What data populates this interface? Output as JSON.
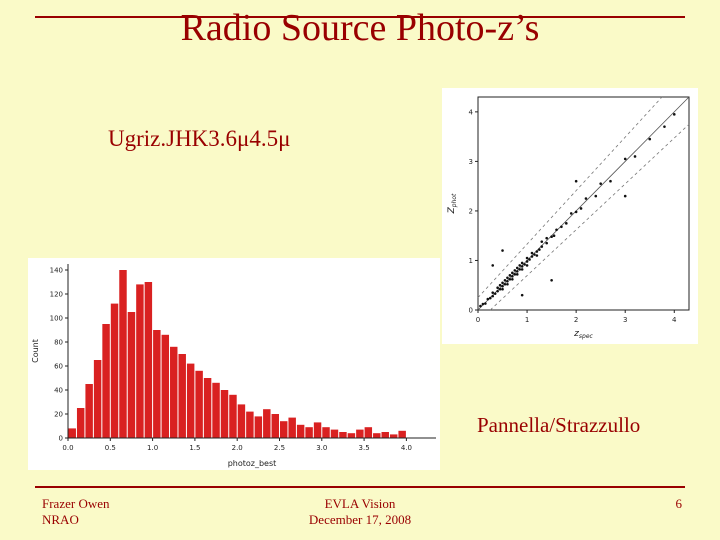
{
  "slide": {
    "title": "Radio Source Photo-z’s",
    "filter_label": "Ugriz.JHK3.6μ4.5μ",
    "credit": "Pannella/Strazzullo",
    "footer": {
      "left_line1": "Frazer Owen",
      "left_line2": "NRAO",
      "center_line1": "EVLA Vision",
      "center_line2": "December 17, 2008",
      "page_number": "6"
    },
    "colors": {
      "background": "#FAFAC8",
      "accent": "#990000",
      "bar": "#D92121",
      "axis": "#222222",
      "point": "#111111"
    }
  },
  "chart_data": [
    {
      "type": "bar",
      "title": "",
      "xlabel": "photoz_best",
      "ylabel": "Count",
      "xlim": [
        0,
        4.35
      ],
      "ylim": [
        0,
        145
      ],
      "bin_start": 0.0,
      "bin_width": 0.1,
      "x_ticks": [
        0.0,
        0.5,
        1.0,
        1.5,
        2.0,
        2.5,
        3.0,
        3.5,
        4.0
      ],
      "y_ticks": [
        0,
        20,
        40,
        60,
        80,
        100,
        120,
        140
      ],
      "values": [
        8,
        25,
        45,
        65,
        95,
        112,
        140,
        105,
        128,
        130,
        90,
        86,
        76,
        70,
        62,
        56,
        50,
        46,
        40,
        36,
        28,
        22,
        18,
        24,
        20,
        14,
        17,
        11,
        9,
        13,
        9,
        7,
        5,
        4,
        7,
        9,
        4,
        5,
        3,
        6
      ]
    },
    {
      "type": "scatter",
      "title": "",
      "xlabel_main": "z",
      "xlabel_sub": "spec",
      "ylabel_main": "Z",
      "ylabel_sub": "phot",
      "xlim": [
        0,
        4.3
      ],
      "ylim": [
        0,
        4.3
      ],
      "x_ticks": [
        0,
        1,
        2,
        3,
        4
      ],
      "y_ticks": [
        0,
        1,
        2,
        3,
        4
      ],
      "diagonal": [
        [
          0,
          0
        ],
        [
          4.3,
          4.3
        ]
      ],
      "dashed_lines": [
        [
          [
            0,
            0.25
          ],
          [
            3.75,
            4.3
          ]
        ],
        [
          [
            0.25,
            0
          ],
          [
            4.3,
            3.75
          ]
        ]
      ],
      "points": [
        [
          0.05,
          0.08
        ],
        [
          0.1,
          0.12
        ],
        [
          0.15,
          0.13
        ],
        [
          0.2,
          0.22
        ],
        [
          0.25,
          0.24
        ],
        [
          0.3,
          0.28
        ],
        [
          0.3,
          0.35
        ],
        [
          0.35,
          0.33
        ],
        [
          0.4,
          0.38
        ],
        [
          0.4,
          0.45
        ],
        [
          0.45,
          0.42
        ],
        [
          0.45,
          0.5
        ],
        [
          0.5,
          0.48
        ],
        [
          0.5,
          0.55
        ],
        [
          0.5,
          0.42
        ],
        [
          0.55,
          0.52
        ],
        [
          0.55,
          0.6
        ],
        [
          0.6,
          0.58
        ],
        [
          0.6,
          0.52
        ],
        [
          0.6,
          0.65
        ],
        [
          0.65,
          0.62
        ],
        [
          0.65,
          0.7
        ],
        [
          0.7,
          0.68
        ],
        [
          0.7,
          0.62
        ],
        [
          0.7,
          0.75
        ],
        [
          0.75,
          0.72
        ],
        [
          0.75,
          0.8
        ],
        [
          0.8,
          0.78
        ],
        [
          0.8,
          0.72
        ],
        [
          0.8,
          0.85
        ],
        [
          0.85,
          0.82
        ],
        [
          0.85,
          0.9
        ],
        [
          0.9,
          0.88
        ],
        [
          0.9,
          0.82
        ],
        [
          0.9,
          0.95
        ],
        [
          0.95,
          0.92
        ],
        [
          1.0,
          0.98
        ],
        [
          1.0,
          1.05
        ],
        [
          1.0,
          0.9
        ],
        [
          1.05,
          1.02
        ],
        [
          1.1,
          1.08
        ],
        [
          1.1,
          1.15
        ],
        [
          1.15,
          1.12
        ],
        [
          1.2,
          1.18
        ],
        [
          1.2,
          1.1
        ],
        [
          1.25,
          1.22
        ],
        [
          1.3,
          1.28
        ],
        [
          1.3,
          1.38
        ],
        [
          1.4,
          1.35
        ],
        [
          1.4,
          1.45
        ],
        [
          1.5,
          1.48
        ],
        [
          1.55,
          1.5
        ],
        [
          1.6,
          1.62
        ],
        [
          1.7,
          1.68
        ],
        [
          1.8,
          1.75
        ],
        [
          1.9,
          1.95
        ],
        [
          2.0,
          1.98
        ],
        [
          2.1,
          2.05
        ],
        [
          2.2,
          2.25
        ],
        [
          2.4,
          2.3
        ],
        [
          2.5,
          2.55
        ],
        [
          2.7,
          2.6
        ],
        [
          3.0,
          3.05
        ],
        [
          3.2,
          3.1
        ],
        [
          3.5,
          3.45
        ],
        [
          3.8,
          3.7
        ],
        [
          4.0,
          3.95
        ],
        [
          0.5,
          1.2
        ],
        [
          1.5,
          0.6
        ],
        [
          2.0,
          2.6
        ],
        [
          0.3,
          0.9
        ],
        [
          3.0,
          2.3
        ],
        [
          0.9,
          0.3
        ]
      ]
    }
  ]
}
